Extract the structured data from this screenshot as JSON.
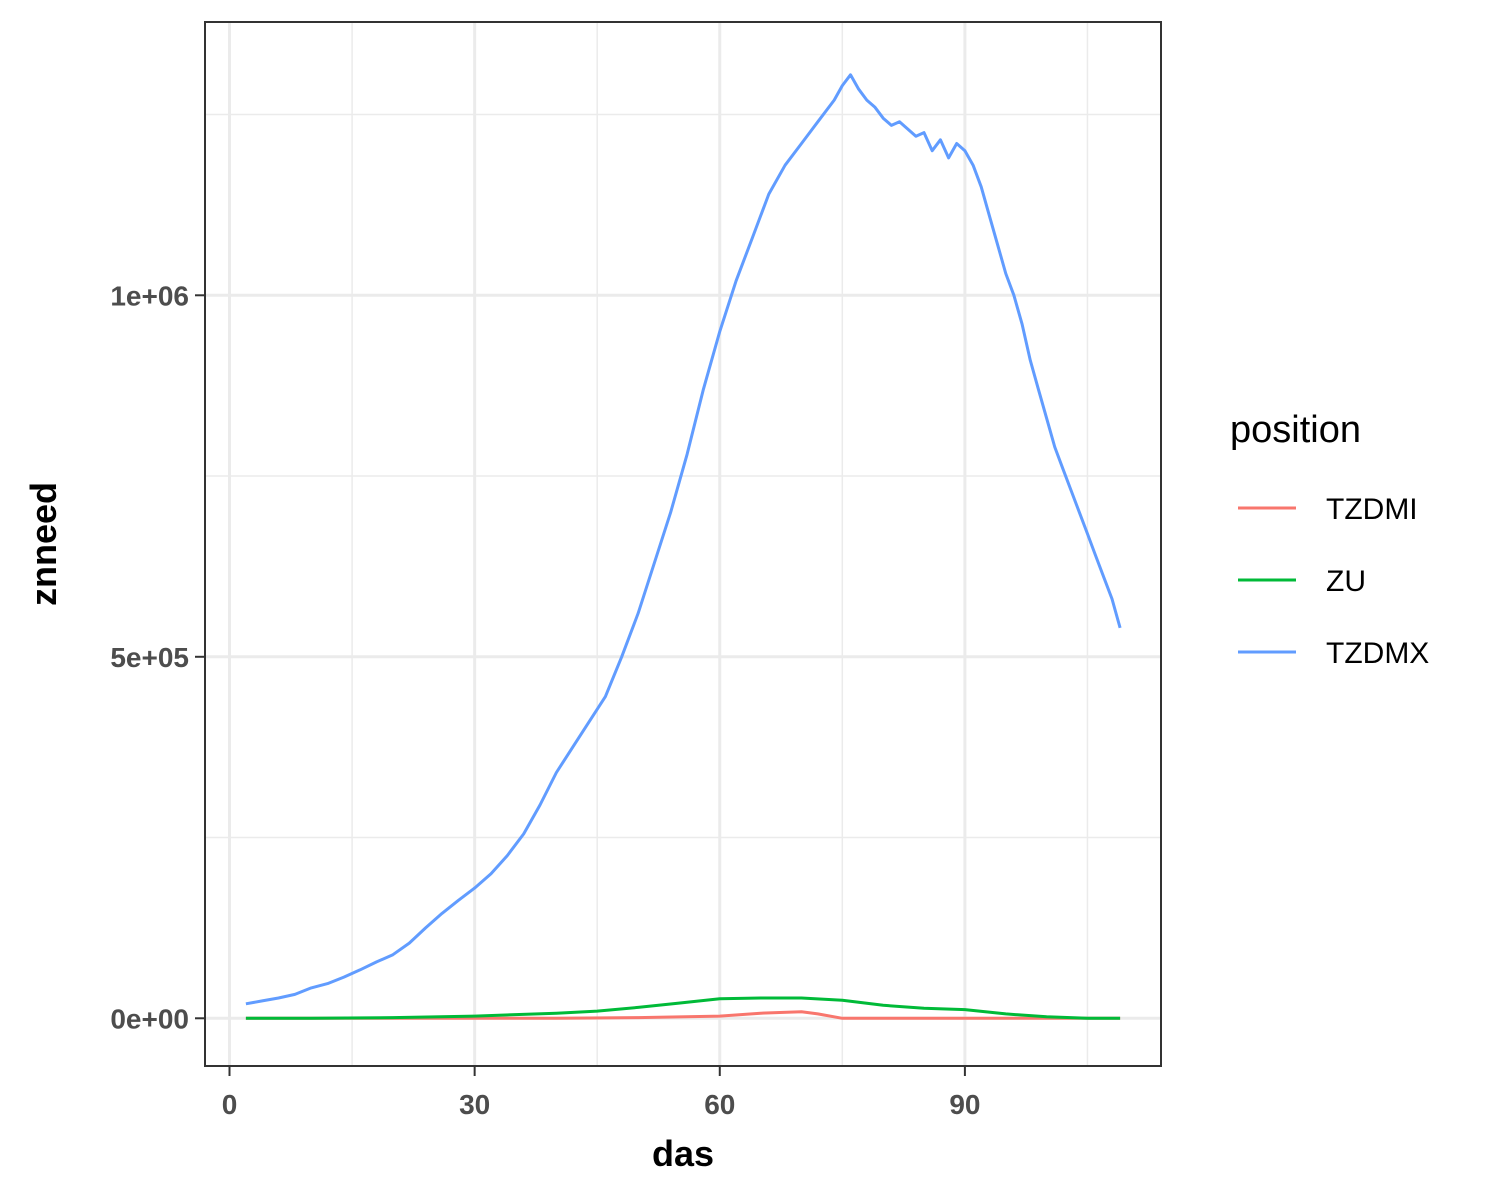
{
  "chart_data": {
    "type": "line",
    "xlabel": "das",
    "ylabel": "znneed",
    "xlim": [
      -3,
      114
    ],
    "ylim": [
      -66000,
      1378000
    ],
    "x_ticks": [
      0,
      30,
      60,
      90
    ],
    "x_tick_labels": [
      "0",
      "30",
      "60",
      "90"
    ],
    "y_ticks": [
      0,
      500000,
      1000000
    ],
    "y_tick_labels": [
      "0e+00",
      "5e+05",
      "1e+06"
    ],
    "grid": true,
    "legend": {
      "title": "position",
      "placement": "right",
      "entries": [
        "TZDMI",
        "ZU",
        "TZDMX"
      ]
    },
    "series": [
      {
        "name": "TZDMI",
        "color": "#F8766D",
        "x": [
          2,
          10,
          20,
          30,
          40,
          50,
          60,
          65,
          70,
          72,
          75,
          80,
          90,
          100,
          104,
          109
        ],
        "y": [
          0,
          0,
          0,
          0,
          0,
          1000,
          3000,
          7000,
          9000,
          6000,
          0,
          0,
          0,
          0,
          0,
          0
        ]
      },
      {
        "name": "ZU",
        "color": "#00BA38",
        "x": [
          2,
          10,
          20,
          30,
          40,
          45,
          50,
          55,
          60,
          65,
          70,
          75,
          80,
          85,
          90,
          95,
          100,
          105,
          109
        ],
        "y": [
          0,
          0,
          1000,
          3000,
          7000,
          10000,
          15000,
          21000,
          27000,
          28000,
          28000,
          25000,
          18000,
          14000,
          12000,
          6000,
          2000,
          0,
          0
        ]
      },
      {
        "name": "TZDMX",
        "color": "#619CFF",
        "x": [
          2,
          4,
          6,
          8,
          10,
          12,
          14,
          16,
          18,
          20,
          22,
          24,
          26,
          28,
          30,
          32,
          34,
          36,
          38,
          40,
          42,
          44,
          46,
          48,
          50,
          52,
          54,
          56,
          58,
          60,
          62,
          64,
          66,
          68,
          70,
          72,
          74,
          75,
          76,
          77,
          78,
          79,
          80,
          81,
          82,
          83,
          84,
          85,
          86,
          87,
          88,
          89,
          90,
          91,
          92,
          93,
          94,
          95,
          96,
          97,
          98,
          99,
          100,
          101,
          102,
          103,
          104,
          105,
          106,
          107,
          108,
          109
        ],
        "y": [
          20000,
          24000,
          28000,
          33000,
          42000,
          48000,
          57000,
          67000,
          78000,
          88000,
          104000,
          125000,
          145000,
          163000,
          180000,
          200000,
          225000,
          255000,
          295000,
          340000,
          375000,
          410000,
          445000,
          500000,
          560000,
          630000,
          700000,
          780000,
          870000,
          950000,
          1020000,
          1080000,
          1140000,
          1180000,
          1210000,
          1240000,
          1270000,
          1290000,
          1305000,
          1285000,
          1270000,
          1260000,
          1245000,
          1235000,
          1240000,
          1230000,
          1220000,
          1225000,
          1200000,
          1215000,
          1190000,
          1210000,
          1200000,
          1180000,
          1150000,
          1110000,
          1070000,
          1030000,
          1000000,
          960000,
          910000,
          870000,
          830000,
          790000,
          760000,
          730000,
          700000,
          670000,
          640000,
          610000,
          580000,
          540000
        ]
      }
    ]
  }
}
